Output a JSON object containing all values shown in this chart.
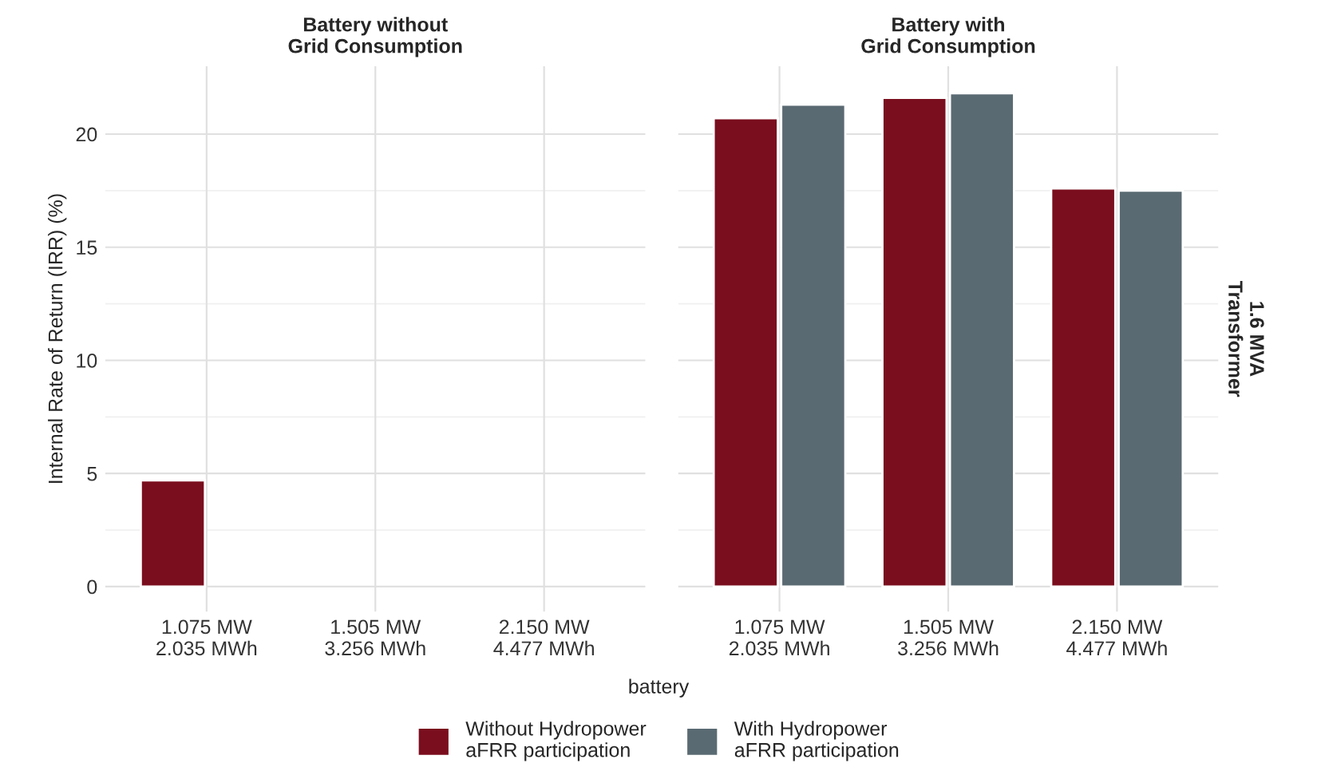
{
  "chart_data": [
    {
      "type": "bar",
      "title": "Battery without\nGrid Consumption",
      "xlabel": "battery",
      "ylabel": "Internal Rate of Return (IRR) (%)",
      "categories": [
        "1.075 MW\n2.035 MWh",
        "1.505 MW\n3.256 MWh",
        "2.150 MW\n4.477 MWh"
      ],
      "series": [
        {
          "color": "#7a0e1e",
          "values": [
            4.7,
            null,
            null
          ]
        }
      ],
      "ylim": [
        -1.1,
        23
      ],
      "yticks": [
        0,
        5,
        10,
        15,
        20
      ],
      "grid": true
    },
    {
      "type": "bar",
      "title": "Battery with\nGrid Consumption",
      "annotations": [
        "1.6 MVA\nTransformer"
      ],
      "categories": [
        "1.075 MW\n2.035 MWh",
        "1.505 MW\n3.256 MWh",
        "2.150 MW\n4.477 MWh"
      ],
      "series": [
        {
          "name": "Without Hydropower\naFRR participation",
          "color": "#7a0e1e",
          "values": [
            20.7,
            21.6,
            17.6
          ]
        },
        {
          "name": "With Hydropower\naFRR participation",
          "color": "#5a6a72",
          "values": [
            21.3,
            21.8,
            17.5
          ]
        }
      ],
      "ylim": [
        -1.1,
        23
      ],
      "yticks": [
        0,
        5,
        10,
        15,
        20
      ],
      "grid": true,
      "tick_labels": "x",
      "legend": "bottom"
    }
  ]
}
